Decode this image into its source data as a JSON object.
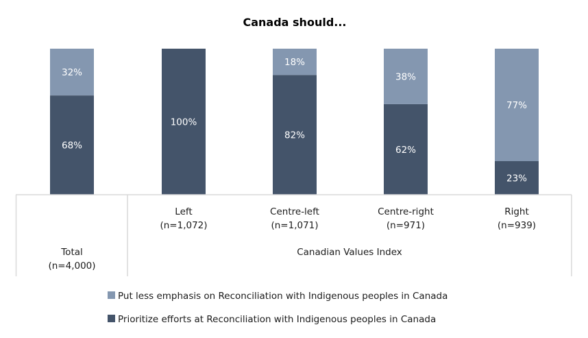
{
  "chart_data": {
    "type": "bar",
    "stacked": true,
    "title": "Canada should...",
    "ylim": [
      0,
      100
    ],
    "categories": [
      {
        "name": "Total",
        "n": "(n=4,000)"
      },
      {
        "name": "Left",
        "n": "(n=1,072)"
      },
      {
        "name": "Centre-left",
        "n": "(n=1,071)"
      },
      {
        "name": "Centre-right",
        "n": "(n=971)"
      },
      {
        "name": "Right",
        "n": "(n=939)"
      }
    ],
    "group_label": "Canadian Values Index",
    "series": [
      {
        "name": "Prioritize efforts at Reconciliation with Indigenous peoples in Canada",
        "color": "#44546a",
        "values": [
          68,
          100,
          82,
          62,
          23
        ],
        "labels": [
          "68%",
          "100%",
          "82%",
          "62%",
          "23%"
        ]
      },
      {
        "name": "Put less emphasis on Reconciliation with Indigenous peoples in Canada",
        "color": "#8497b0",
        "values": [
          32,
          0,
          18,
          38,
          77
        ],
        "labels": [
          "32%",
          "",
          "18%",
          "38%",
          "77%"
        ]
      }
    ],
    "legend": {
      "placement": "bottom",
      "order": [
        1,
        0
      ]
    },
    "grid": false
  }
}
